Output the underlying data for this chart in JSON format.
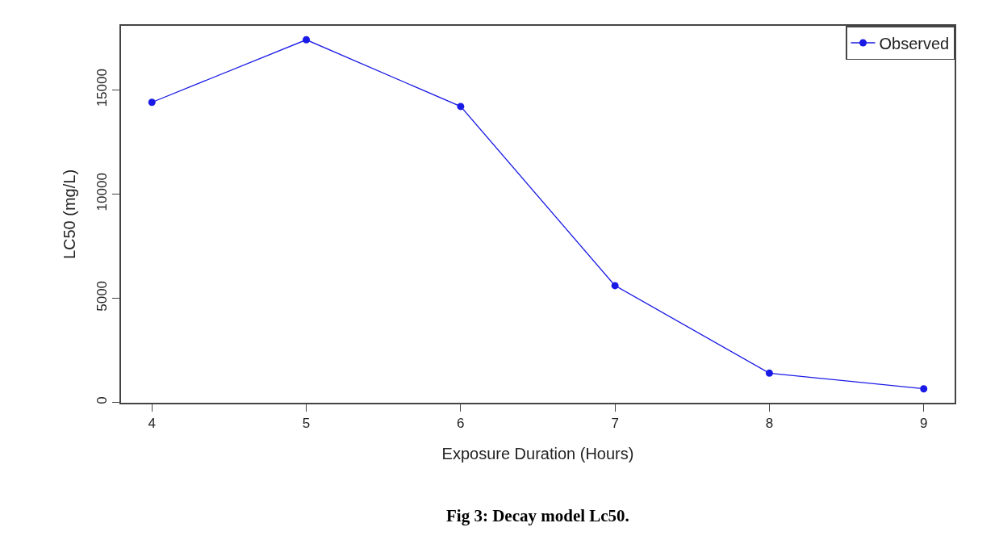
{
  "chart_data": {
    "type": "line",
    "title": "Fig 3: Decay model Lc50.",
    "xlabel": "Exposure Duration (Hours)",
    "ylabel": "LC50 (mg/L)",
    "x": [
      4,
      5,
      6,
      7,
      8,
      9
    ],
    "series": [
      {
        "name": "Observed",
        "color": "#1a1ae6",
        "values": [
          14400,
          17400,
          14200,
          5600,
          1400,
          650
        ]
      }
    ],
    "xlim": [
      3.8,
      9.2
    ],
    "xticks": [
      4,
      5,
      6,
      7,
      8,
      9
    ],
    "ylim": [
      -20,
      18070
    ],
    "yticks": [
      0,
      5000,
      10000,
      15000
    ],
    "legend": "top right",
    "marker": "circle",
    "line_style": "solid"
  }
}
